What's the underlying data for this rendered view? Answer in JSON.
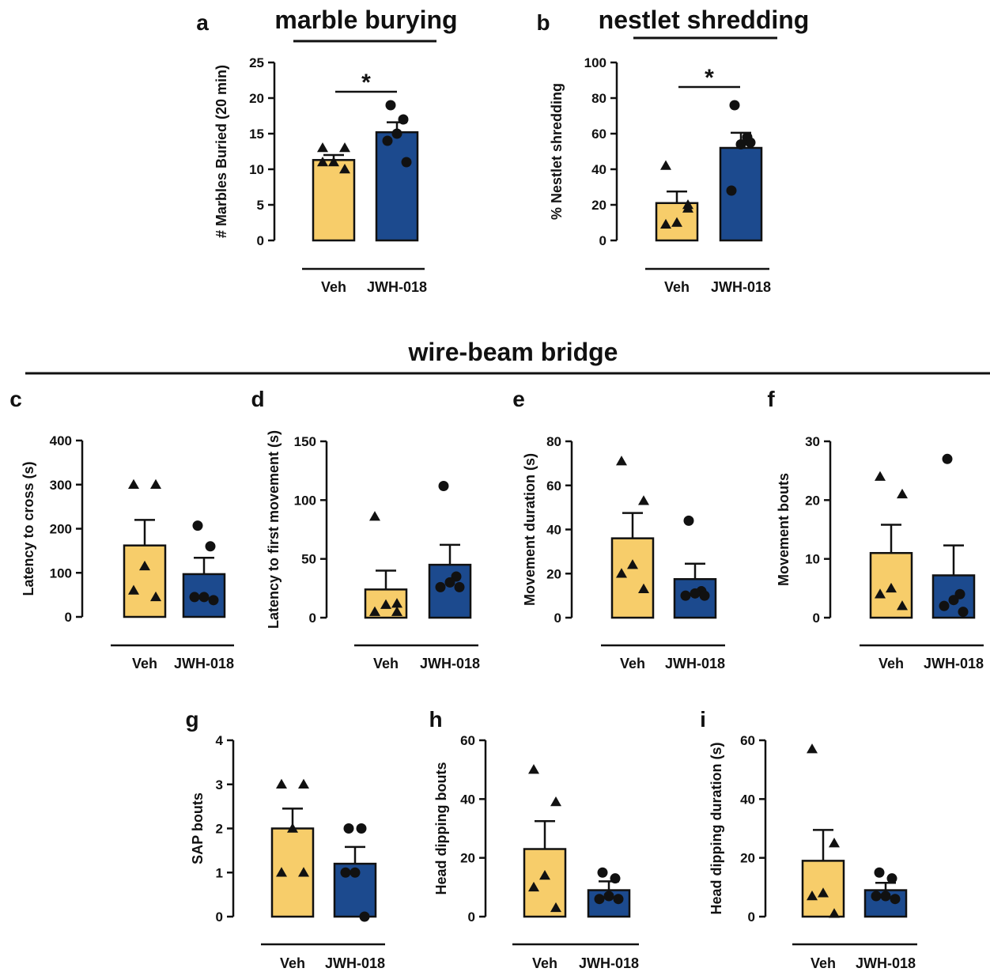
{
  "colors": {
    "veh": "#f7cd6a",
    "jwh": "#1c4a8e",
    "ink": "#111111"
  },
  "section_titles": {
    "marble": "marble burying",
    "nestlet": "nestlet shredding",
    "wire": "wire-beam bridge"
  },
  "chart_data": [
    {
      "id": "a",
      "type": "bar",
      "panel_letter": "a",
      "ylabel": "# Marbles Buried (20 min)",
      "categories": [
        "Veh",
        "JWH-018"
      ],
      "ylim": [
        0,
        25
      ],
      "yticks": [
        0,
        5,
        10,
        15,
        20,
        25
      ],
      "means": [
        11.3,
        15.2
      ],
      "sem": [
        0.7,
        1.4
      ],
      "points": [
        [
          13,
          13,
          11,
          11,
          10
        ],
        [
          19,
          17,
          15,
          14,
          11
        ]
      ],
      "markers": [
        "triangle",
        "circle"
      ],
      "significance": "*"
    },
    {
      "id": "b",
      "type": "bar",
      "panel_letter": "b",
      "ylabel": "% Nestlet shredding",
      "categories": [
        "Veh",
        "JWH-018"
      ],
      "ylim": [
        0,
        100
      ],
      "yticks": [
        0,
        20,
        40,
        60,
        80,
        100
      ],
      "means": [
        21,
        52
      ],
      "sem": [
        6.5,
        8.5
      ],
      "points": [
        [
          42,
          18,
          10,
          9,
          20
        ],
        [
          76,
          58,
          54,
          28,
          55
        ]
      ],
      "markers": [
        "triangle",
        "circle"
      ],
      "significance": "*"
    },
    {
      "id": "c",
      "type": "bar",
      "panel_letter": "c",
      "ylabel": "Latency to cross (s)",
      "categories": [
        "Veh",
        "JWH-018"
      ],
      "ylim": [
        0,
        400
      ],
      "yticks": [
        0,
        100,
        200,
        300,
        400
      ],
      "means": [
        162,
        97
      ],
      "sem": [
        58,
        37
      ],
      "points": [
        [
          300,
          300,
          115,
          60,
          45
        ],
        [
          207,
          160,
          45,
          45,
          38
        ]
      ],
      "markers": [
        "triangle",
        "circle"
      ]
    },
    {
      "id": "d",
      "type": "bar",
      "panel_letter": "d",
      "ylabel": "Latency to first movement  (s)",
      "categories": [
        "Veh",
        "JWH-018"
      ],
      "ylim": [
        0,
        150
      ],
      "yticks": [
        0,
        50,
        100,
        150
      ],
      "means": [
        24,
        45
      ],
      "sem": [
        16,
        17
      ],
      "points": [
        [
          86,
          12,
          11,
          5,
          5
        ],
        [
          112,
          35,
          30,
          26,
          26
        ]
      ],
      "markers": [
        "triangle",
        "circle"
      ]
    },
    {
      "id": "e",
      "type": "bar",
      "panel_letter": "e",
      "ylabel": "Movement duration (s)",
      "categories": [
        "Veh",
        "JWH-018"
      ],
      "ylim": [
        0,
        80
      ],
      "yticks": [
        0,
        20,
        40,
        60,
        80
      ],
      "means": [
        36,
        17.5
      ],
      "sem": [
        11.5,
        7
      ],
      "points": [
        [
          71,
          53,
          24,
          20,
          13
        ],
        [
          44,
          12,
          11,
          10,
          10
        ]
      ],
      "markers": [
        "triangle",
        "circle"
      ]
    },
    {
      "id": "f",
      "type": "bar",
      "panel_letter": "f",
      "ylabel": "Movement bouts",
      "categories": [
        "Veh",
        "JWH-018"
      ],
      "ylim": [
        0,
        30
      ],
      "yticks": [
        0,
        10,
        20,
        30
      ],
      "means": [
        11,
        7.2
      ],
      "sem": [
        4.8,
        5.1
      ],
      "points": [
        [
          24,
          21,
          5,
          4,
          2
        ],
        [
          27,
          4,
          3,
          2,
          1
        ]
      ],
      "markers": [
        "triangle",
        "circle"
      ]
    },
    {
      "id": "g",
      "type": "bar",
      "panel_letter": "g",
      "ylabel": "SAP bouts",
      "categories": [
        "Veh",
        "JWH-018"
      ],
      "ylim": [
        0,
        4
      ],
      "yticks": [
        0,
        1,
        2,
        3,
        4
      ],
      "means": [
        2,
        1.2
      ],
      "sem": [
        0.45,
        0.38
      ],
      "points": [
        [
          3,
          3,
          2,
          1,
          1
        ],
        [
          2,
          2,
          1,
          1,
          0
        ]
      ],
      "markers": [
        "triangle",
        "circle"
      ]
    },
    {
      "id": "h",
      "type": "bar",
      "panel_letter": "h",
      "ylabel": "Head dipping bouts",
      "categories": [
        "Veh",
        "JWH-018"
      ],
      "ylim": [
        0,
        60
      ],
      "yticks": [
        0,
        20,
        40,
        60
      ],
      "means": [
        23,
        9
      ],
      "sem": [
        9.5,
        3
      ],
      "points": [
        [
          50,
          39,
          14,
          10,
          3
        ],
        [
          15,
          13,
          7,
          6,
          6
        ]
      ],
      "markers": [
        "triangle",
        "circle"
      ]
    },
    {
      "id": "i",
      "type": "bar",
      "panel_letter": "i",
      "ylabel": "Head dipping duration (s)",
      "categories": [
        "Veh",
        "JWH-018"
      ],
      "ylim": [
        0,
        60
      ],
      "yticks": [
        0,
        20,
        40,
        60
      ],
      "means": [
        19,
        9
      ],
      "sem": [
        10.5,
        2.5
      ],
      "points": [
        [
          57,
          25,
          8,
          7,
          1
        ],
        [
          15,
          13,
          7,
          7,
          6
        ]
      ],
      "markers": [
        "triangle",
        "circle"
      ]
    }
  ]
}
